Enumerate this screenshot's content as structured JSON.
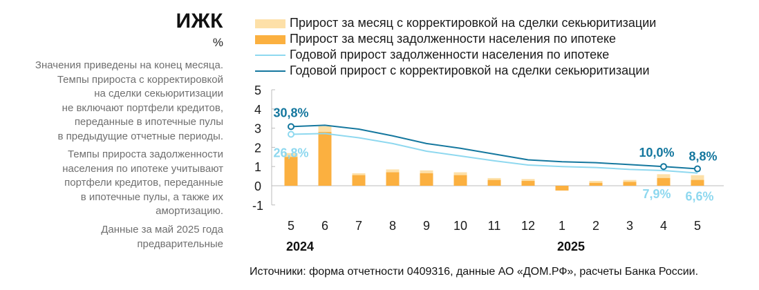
{
  "side": {
    "title": "ИЖК",
    "unit": "%",
    "note1": [
      "Значения приведены на конец месяца.",
      "Темпы прироста с корректировкой",
      "на сделки секьюритизации",
      "не включают портфели кредитов,",
      "переданные в ипотечные пулы",
      "в предыдущие отчетные периоды."
    ],
    "note2": [
      "Темпы прироста задолженности",
      "населения по ипотеке учитывают",
      "портфели кредитов, переданные",
      "в ипотечные пулы, а также их",
      "амортизацию."
    ],
    "note3": [
      "Данные за май 2025 года",
      "предварительные"
    ]
  },
  "colors": {
    "bar_adjusted": "#fde0a8",
    "bar_debt": "#fbb040",
    "line_annual": "#8ed8ef",
    "line_adjusted": "#14779e"
  },
  "chart_data": {
    "type": "bar+line",
    "categories": [
      "5",
      "6",
      "7",
      "8",
      "9",
      "10",
      "11",
      "12",
      "1",
      "2",
      "3",
      "4",
      "5"
    ],
    "year_labels": [
      "2024",
      "2025"
    ],
    "ylim": [
      -1,
      5
    ],
    "yticks": [
      -1,
      0,
      1,
      2,
      3,
      4,
      5
    ],
    "legend": [
      "Прирост за месяц с корректировкой на сделки секьюритизации",
      "Прирост за месяц задолженности населения по ипотеке",
      "Годовой прирост задолженности населения по ипотеке",
      "Годовой прирост с корректировкой на сделки секьюритизации"
    ],
    "series": [
      {
        "name": "Прирост за месяц с корректировкой на сделки секьюритизации",
        "kind": "bar",
        "values": [
          1.7,
          3.1,
          0.65,
          0.85,
          0.8,
          0.7,
          0.4,
          0.35,
          -0.1,
          0.25,
          0.3,
          0.6,
          0.55
        ]
      },
      {
        "name": "Прирост за месяц задолженности населения по ипотеке",
        "kind": "bar",
        "values": [
          1.5,
          2.8,
          0.55,
          0.7,
          0.65,
          0.55,
          0.3,
          0.25,
          -0.25,
          0.15,
          0.2,
          0.4,
          0.3
        ]
      },
      {
        "name": "Годовой прирост задолженности населения по ипотеке",
        "kind": "line",
        "values": [
          2.68,
          2.72,
          2.5,
          2.2,
          1.8,
          1.55,
          1.3,
          1.08,
          1.0,
          0.95,
          0.85,
          0.79,
          0.66
        ]
      },
      {
        "name": "Годовой прирост с корректировкой на сделки секьюритизации",
        "kind": "line",
        "values": [
          3.08,
          3.15,
          2.95,
          2.6,
          2.2,
          1.95,
          1.65,
          1.35,
          1.25,
          1.2,
          1.1,
          1.0,
          0.88
        ]
      }
    ],
    "annotations": [
      {
        "text": "30,8%",
        "series": "adjusted",
        "index": 0
      },
      {
        "text": "26,8%",
        "series": "annual",
        "index": 0
      },
      {
        "text": "10,0%",
        "series": "adjusted",
        "index": 11
      },
      {
        "text": "8,8%",
        "series": "adjusted",
        "index": 12
      },
      {
        "text": "7,9%",
        "series": "annual",
        "index": 11
      },
      {
        "text": "6,6%",
        "series": "annual",
        "index": 12
      }
    ]
  },
  "source": "Источники: форма отчетности 0409316, данные АО «ДОМ.РФ», расчеты Банка России."
}
